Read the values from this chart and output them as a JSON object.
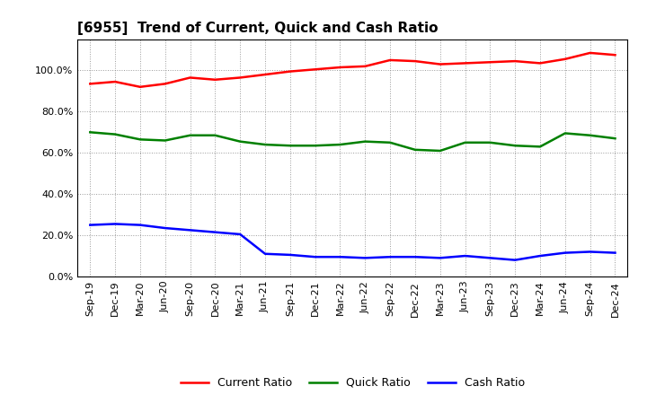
{
  "title": "[6955]  Trend of Current, Quick and Cash Ratio",
  "x_labels": [
    "Sep-19",
    "Dec-19",
    "Mar-20",
    "Jun-20",
    "Sep-20",
    "Dec-20",
    "Mar-21",
    "Jun-21",
    "Sep-21",
    "Dec-21",
    "Mar-22",
    "Jun-22",
    "Sep-22",
    "Dec-22",
    "Mar-23",
    "Jun-23",
    "Sep-23",
    "Dec-23",
    "Mar-24",
    "Jun-24",
    "Sep-24",
    "Dec-24"
  ],
  "current_ratio": [
    93.5,
    94.5,
    92.0,
    93.5,
    96.5,
    95.5,
    96.5,
    98.0,
    99.5,
    100.5,
    101.5,
    102.0,
    105.0,
    104.5,
    103.0,
    103.5,
    104.0,
    104.5,
    103.5,
    105.5,
    108.5,
    107.5
  ],
  "quick_ratio": [
    70.0,
    69.0,
    66.5,
    66.0,
    68.5,
    68.5,
    65.5,
    64.0,
    63.5,
    63.5,
    64.0,
    65.5,
    65.0,
    61.5,
    61.0,
    65.0,
    65.0,
    63.5,
    63.0,
    69.5,
    68.5,
    67.0
  ],
  "cash_ratio": [
    25.0,
    25.5,
    25.0,
    23.5,
    22.5,
    21.5,
    20.5,
    11.0,
    10.5,
    9.5,
    9.5,
    9.0,
    9.5,
    9.5,
    9.0,
    10.0,
    9.0,
    8.0,
    10.0,
    11.5,
    12.0,
    11.5
  ],
  "current_color": "#ff0000",
  "quick_color": "#008000",
  "cash_color": "#0000ff",
  "ylim": [
    0,
    115
  ],
  "yticks": [
    0,
    20,
    40,
    60,
    80,
    100
  ],
  "background_color": "#ffffff",
  "plot_bg_color": "#ffffff",
  "title_fontsize": 11,
  "tick_fontsize": 8,
  "legend_fontsize": 9,
  "line_width": 1.8
}
